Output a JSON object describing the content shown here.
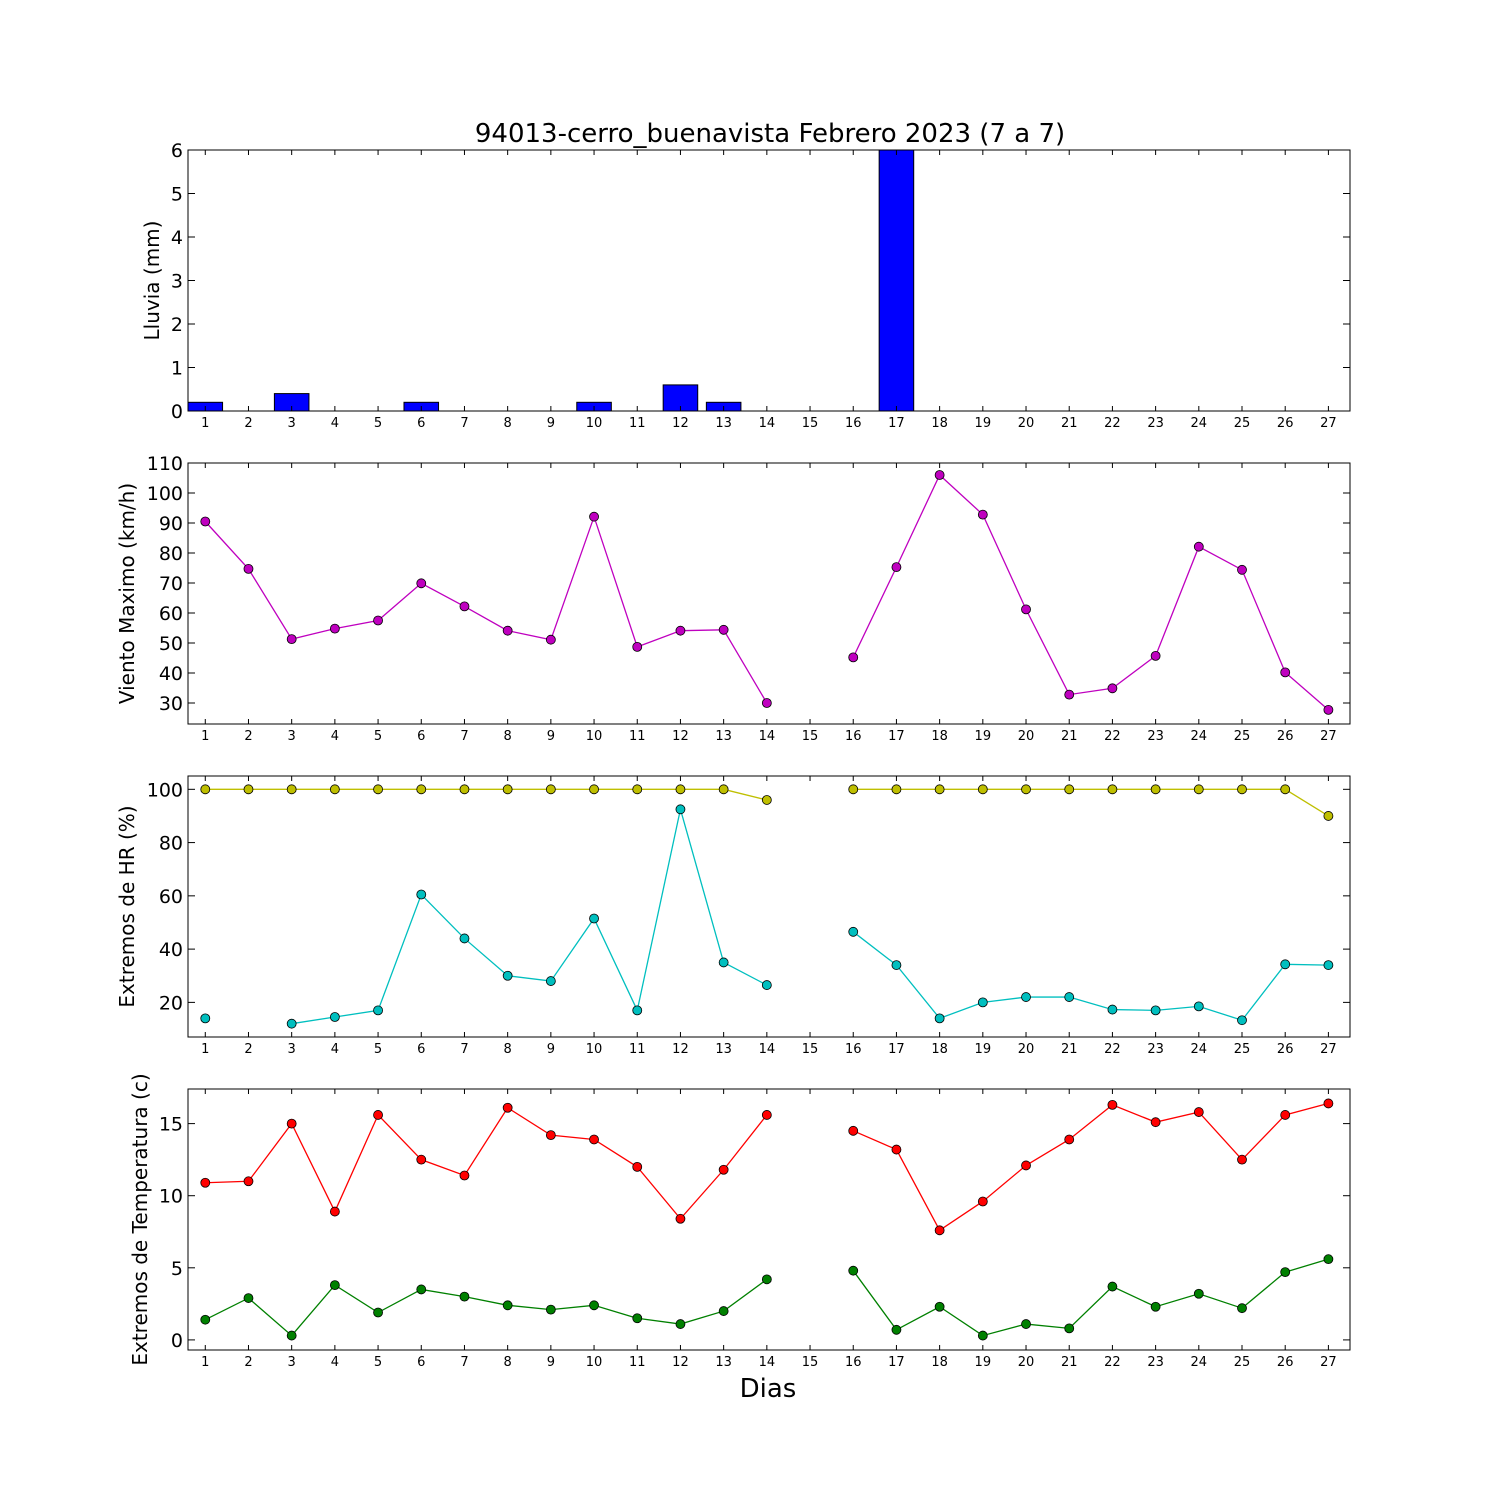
{
  "figure": {
    "title": "94013-cerro_buenavista Febrero 2023  (7 a 7)",
    "xlabel": "Dias"
  },
  "chart_data": [
    {
      "type": "bar",
      "ylabel": "Lluvia (mm)",
      "xlim": [
        0.6,
        27.5
      ],
      "ylim": [
        0,
        6
      ],
      "yticks": [
        0,
        1,
        2,
        3,
        4,
        5,
        6
      ],
      "xticks": [
        1,
        2,
        3,
        4,
        5,
        6,
        7,
        8,
        9,
        10,
        11,
        12,
        13,
        14,
        15,
        16,
        17,
        18,
        19,
        20,
        21,
        22,
        23,
        24,
        25,
        26,
        27
      ],
      "series": [
        {
          "color": "#0000ff",
          "x": [
            1,
            2,
            3,
            4,
            5,
            6,
            7,
            8,
            9,
            10,
            11,
            12,
            13,
            14,
            15,
            16,
            17,
            18,
            19,
            20,
            21,
            22,
            23,
            24,
            25,
            26,
            27
          ],
          "values": [
            0.2,
            0,
            0.4,
            0,
            0,
            0.2,
            0,
            0,
            0,
            0.2,
            0,
            0.6,
            0.2,
            0,
            0,
            0,
            6.0,
            0,
            0,
            0,
            0,
            0,
            0,
            0,
            0,
            0,
            0
          ]
        }
      ]
    },
    {
      "type": "line",
      "ylabel": "Viento Maximo (km/h)",
      "xlim": [
        0.6,
        27.5
      ],
      "ylim": [
        23,
        110
      ],
      "yticks": [
        30,
        40,
        50,
        60,
        70,
        80,
        90,
        100,
        110
      ],
      "xticks": [
        1,
        2,
        3,
        4,
        5,
        6,
        7,
        8,
        9,
        10,
        11,
        12,
        13,
        14,
        15,
        16,
        17,
        18,
        19,
        20,
        21,
        22,
        23,
        24,
        25,
        26,
        27
      ],
      "series": [
        {
          "color": "#bf00bf",
          "x": [
            1,
            2,
            3,
            4,
            5,
            6,
            7,
            8,
            9,
            10,
            11,
            12,
            13,
            14,
            15,
            16,
            17,
            18,
            19,
            20,
            21,
            22,
            23,
            24,
            25,
            26,
            27
          ],
          "values": [
            90.5,
            74.7,
            51.3,
            54.8,
            57.5,
            69.9,
            62.2,
            54.1,
            51.1,
            92.1,
            48.7,
            54.1,
            54.4,
            30.0,
            null,
            45.2,
            75.3,
            106.0,
            92.8,
            61.2,
            32.8,
            34.9,
            45.7,
            82.1,
            74.4,
            40.2,
            27.7
          ]
        }
      ]
    },
    {
      "type": "line",
      "ylabel": "Extremos de HR (%)",
      "xlim": [
        0.6,
        27.5
      ],
      "ylim": [
        7,
        105
      ],
      "yticks": [
        20,
        40,
        60,
        80,
        100
      ],
      "xticks": [
        1,
        2,
        3,
        4,
        5,
        6,
        7,
        8,
        9,
        10,
        11,
        12,
        13,
        14,
        15,
        16,
        17,
        18,
        19,
        20,
        21,
        22,
        23,
        24,
        25,
        26,
        27
      ],
      "series": [
        {
          "color": "#bfbf00",
          "x": [
            1,
            2,
            3,
            4,
            5,
            6,
            7,
            8,
            9,
            10,
            11,
            12,
            13,
            14,
            15,
            16,
            17,
            18,
            19,
            20,
            21,
            22,
            23,
            24,
            25,
            26,
            27
          ],
          "values": [
            100,
            100,
            100,
            100,
            100,
            100,
            100,
            100,
            100,
            100,
            100,
            100,
            100,
            96,
            null,
            100,
            100,
            100,
            100,
            100,
            100,
            100,
            100,
            100,
            100,
            100,
            90
          ]
        },
        {
          "color": "#00bfbf",
          "x": [
            1,
            2,
            3,
            4,
            5,
            6,
            7,
            8,
            9,
            10,
            11,
            12,
            13,
            14,
            15,
            16,
            17,
            18,
            19,
            20,
            21,
            22,
            23,
            24,
            25,
            26,
            27
          ],
          "values": [
            14,
            null,
            12,
            14.5,
            17,
            60.5,
            44,
            30,
            28,
            51.5,
            17,
            92.5,
            35,
            26.5,
            null,
            46.5,
            34,
            14,
            20,
            22,
            22,
            17.3,
            17,
            18.5,
            13.3,
            34.3,
            34
          ]
        }
      ]
    },
    {
      "type": "line",
      "ylabel": "Extremos de Temperatura (c)",
      "xlim": [
        0.6,
        27.5
      ],
      "ylim": [
        -0.7,
        17.4
      ],
      "yticks": [
        0,
        5,
        10,
        15
      ],
      "xticks": [
        1,
        2,
        3,
        4,
        5,
        6,
        7,
        8,
        9,
        10,
        11,
        12,
        13,
        14,
        15,
        16,
        17,
        18,
        19,
        20,
        21,
        22,
        23,
        24,
        25,
        26,
        27
      ],
      "series": [
        {
          "color": "#ff0000",
          "x": [
            1,
            2,
            3,
            4,
            5,
            6,
            7,
            8,
            9,
            10,
            11,
            12,
            13,
            14,
            15,
            16,
            17,
            18,
            19,
            20,
            21,
            22,
            23,
            24,
            25,
            26,
            27
          ],
          "values": [
            10.9,
            11.0,
            15.0,
            8.9,
            15.6,
            12.5,
            11.4,
            16.1,
            14.2,
            13.9,
            12.0,
            8.4,
            11.8,
            15.6,
            null,
            14.5,
            13.2,
            7.6,
            9.6,
            12.1,
            13.9,
            16.3,
            15.1,
            15.8,
            12.5,
            15.6,
            16.4
          ]
        },
        {
          "color": "#008000",
          "x": [
            1,
            2,
            3,
            4,
            5,
            6,
            7,
            8,
            9,
            10,
            11,
            12,
            13,
            14,
            15,
            16,
            17,
            18,
            19,
            20,
            21,
            22,
            23,
            24,
            25,
            26,
            27
          ],
          "values": [
            1.4,
            2.9,
            0.3,
            3.8,
            1.9,
            3.5,
            3.0,
            2.4,
            2.1,
            2.4,
            1.5,
            1.1,
            2.0,
            4.2,
            null,
            4.8,
            0.7,
            2.3,
            0.3,
            1.1,
            0.8,
            3.7,
            2.3,
            3.2,
            2.2,
            4.7,
            5.6
          ]
        }
      ]
    }
  ]
}
